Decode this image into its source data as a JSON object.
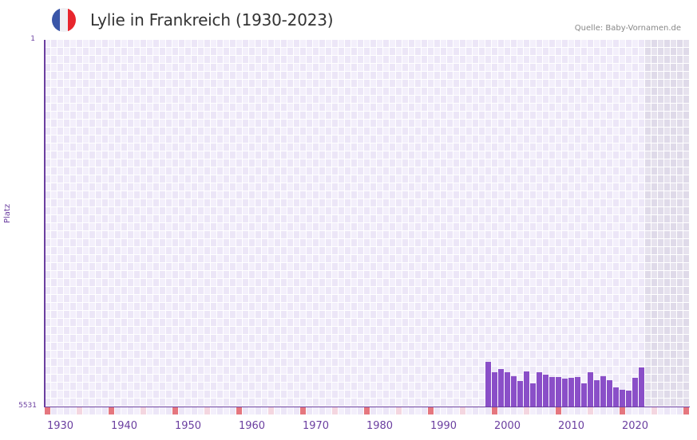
{
  "header": {
    "title": "Lylie in Frankreich (1930-2023)",
    "source": "Quelle: Baby-Vornamen.de",
    "flag_icon": "france-flag-icon",
    "flag_colors": [
      "#3a56a8",
      "#f0f0f4",
      "#e8262d"
    ]
  },
  "colors": {
    "bar": "#8a4fc8",
    "axis": "#6b3fa0",
    "grid_light": "#f3effb",
    "grid_dark": "#ece6f7",
    "future_light": "#e6e2ee",
    "future_dark": "#dfdae9",
    "decade_marker": "#e5767e",
    "half_decade_marker": "#f4d6e0"
  },
  "chart_data": {
    "type": "bar",
    "title": "Lylie in Frankreich (1930-2023)",
    "xlabel": "",
    "ylabel": "Platz",
    "ylim": [
      5531,
      1
    ],
    "y_inverted": true,
    "y_ticks": [
      "1",
      "5531"
    ],
    "x_ticks": [
      "1930",
      "1940",
      "1950",
      "1960",
      "1970",
      "1980",
      "1990",
      "2000",
      "2010",
      "2020"
    ],
    "x_range": [
      1928,
      2028
    ],
    "future_region_start": 2022,
    "grid": true,
    "legend": null,
    "categories": [
      1997,
      1998,
      1999,
      2000,
      2001,
      2002,
      2003,
      2004,
      2005,
      2006,
      2007,
      2008,
      2009,
      2010,
      2011,
      2012,
      2013,
      2014,
      2015,
      2016,
      2017,
      2018,
      2019,
      2020,
      2021
    ],
    "series": [
      {
        "name": "Platz",
        "values": [
          4858,
          5014,
          4966,
          5014,
          5074,
          5146,
          5002,
          5182,
          5014,
          5050,
          5086,
          5086,
          5110,
          5098,
          5086,
          5182,
          5014,
          5134,
          5074,
          5134,
          5242,
          5278,
          5290,
          5098,
          4942
        ]
      }
    ]
  }
}
